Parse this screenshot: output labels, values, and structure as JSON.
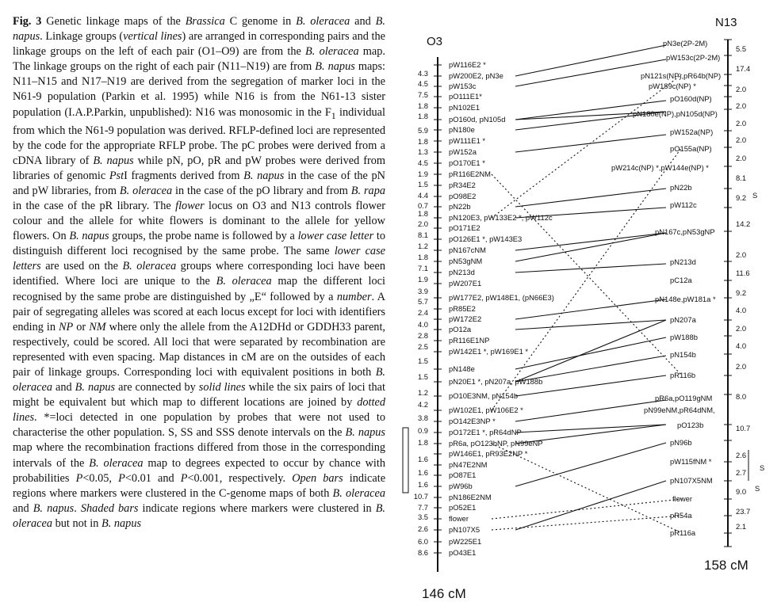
{
  "caption": {
    "fig_label": "Fig. 3",
    "segments": [
      {
        "t": " Genetic linkage maps of the ",
        "s": ""
      },
      {
        "t": "Brassica",
        "s": "it"
      },
      {
        "t": " C genome in ",
        "s": ""
      },
      {
        "t": "B. oleracea",
        "s": "it"
      },
      {
        "t": " and ",
        "s": ""
      },
      {
        "t": "B. napus",
        "s": "it"
      },
      {
        "t": ". Linkage groups (",
        "s": ""
      },
      {
        "t": "vertical lines",
        "s": "it"
      },
      {
        "t": ") are arranged in corresponding pairs and the linkage groups on the left of each pair (O1–O9) are from the ",
        "s": ""
      },
      {
        "t": "B. oleracea",
        "s": "it"
      },
      {
        "t": " map. The linkage groups on the right of each pair (N11–N19) are from ",
        "s": ""
      },
      {
        "t": "B. napus",
        "s": "it"
      },
      {
        "t": " maps: N11–N15 and N17–N19 are derived from the segregation of marker loci in the N61-9 population (Parkin et al. 1995) while N16 is from the N61-13 sister population (I.A.P.Parkin, unpublished): N16 was monosomic in the F",
        "s": ""
      },
      {
        "t": "1",
        "s": "sub"
      },
      {
        "t": " individual from which the N61-9 population was derived. RFLP-defined loci are represented by the code for the appropriate RFLP probe. The pC probes were derived from a cDNA library of ",
        "s": ""
      },
      {
        "t": "B. napus",
        "s": "it"
      },
      {
        "t": " while pN, pO, pR and pW probes were derived from libraries of genomic ",
        "s": ""
      },
      {
        "t": "Pst",
        "s": "it"
      },
      {
        "t": "I fragments derived from ",
        "s": ""
      },
      {
        "t": "B. napus",
        "s": "it"
      },
      {
        "t": " in the case of the pN and pW libraries, from ",
        "s": ""
      },
      {
        "t": "B. oleracea",
        "s": "it"
      },
      {
        "t": " in the case of the pO library and from ",
        "s": ""
      },
      {
        "t": "B. rapa",
        "s": "it"
      },
      {
        "t": " in the case of the pR library. The ",
        "s": ""
      },
      {
        "t": "flower",
        "s": "it"
      },
      {
        "t": " locus on O3 and N13 controls flower colour and the allele for white flowers is dominant to the allele for yellow flowers. On ",
        "s": ""
      },
      {
        "t": "B. napus",
        "s": "it"
      },
      {
        "t": " groups, the probe name is followed by a ",
        "s": ""
      },
      {
        "t": "lower case letter",
        "s": "it"
      },
      {
        "t": " to distinguish different loci recognised by the same probe. The same ",
        "s": ""
      },
      {
        "t": "lower case letters",
        "s": "it"
      },
      {
        "t": " are used on the ",
        "s": ""
      },
      {
        "t": "B. oleracea",
        "s": "it"
      },
      {
        "t": " groups where corresponding loci have been identified. Where loci are unique to the ",
        "s": ""
      },
      {
        "t": "B. oleracea",
        "s": "it"
      },
      {
        "t": " map the different loci recognised by the same probe are distinguished by „E“ followed by a ",
        "s": ""
      },
      {
        "t": "number",
        "s": "it"
      },
      {
        "t": ". A pair of segregating alleles was scored at each locus except for loci with identifiers ending in ",
        "s": ""
      },
      {
        "t": "NP",
        "s": "it"
      },
      {
        "t": " or ",
        "s": ""
      },
      {
        "t": "NM",
        "s": "it"
      },
      {
        "t": " where only the allele from the A12DHd or GDDH33 parent, respectively, could be scored. All loci that were separated by recombination are represented with even spacing. Map distances in cM are on the outsides of each pair of linkage groups. Corresponding loci with equivalent positions in both ",
        "s": ""
      },
      {
        "t": "B. oleracea",
        "s": "it"
      },
      {
        "t": " and ",
        "s": ""
      },
      {
        "t": "B. napus",
        "s": "it"
      },
      {
        "t": " are connected by ",
        "s": ""
      },
      {
        "t": "solid lines",
        "s": "it"
      },
      {
        "t": " while the six pairs of loci that might be equivalent but which map to different locations are joined by ",
        "s": ""
      },
      {
        "t": "dotted lines",
        "s": "it"
      },
      {
        "t": ". *=loci detected in one population by probes that were not used to characterise the other population. S, SS and SSS denote intervals on the ",
        "s": ""
      },
      {
        "t": "B. napus",
        "s": "it"
      },
      {
        "t": " map where the recombination fractions differed from those in the corresponding intervals of the ",
        "s": ""
      },
      {
        "t": "B. oleracea",
        "s": "it"
      },
      {
        "t": " map to degrees expected to occur by chance with probabilities ",
        "s": ""
      },
      {
        "t": "P",
        "s": "it"
      },
      {
        "t": "<0.05, ",
        "s": ""
      },
      {
        "t": "P",
        "s": "it"
      },
      {
        "t": "<0.01 and ",
        "s": ""
      },
      {
        "t": "P",
        "s": "it"
      },
      {
        "t": "<0.001, respectively. ",
        "s": ""
      },
      {
        "t": "Open bars",
        "s": "it"
      },
      {
        "t": " indicate regions where markers were clustered in the C-genome maps of both ",
        "s": ""
      },
      {
        "t": "B. oleracea",
        "s": "it"
      },
      {
        "t": " and ",
        "s": ""
      },
      {
        "t": "B. napus",
        "s": "it"
      },
      {
        "t": ". ",
        "s": ""
      },
      {
        "t": "Shaded bars",
        "s": "it"
      },
      {
        "t": " indicate regions where markers were clustered in ",
        "s": ""
      },
      {
        "t": "B. oleracea",
        "s": "it"
      },
      {
        "t": " but not in ",
        "s": ""
      },
      {
        "t": "B. napus",
        "s": "it"
      }
    ]
  },
  "map_o3": {
    "title": "O3",
    "total": "146 cM",
    "loci": [
      "pW116E2 *",
      "pW200E2, pN3e",
      "pW153c",
      "pO111E1*",
      "pN102E1",
      "pO160d, pN105d",
      "pN180e",
      "pW111E1 *",
      "pW152a",
      "pO170E1 *",
      "pR116E2NM",
      "pR34E2",
      "pO98E2",
      "pN22b",
      "pN120E3, pW133E2 *, pW112c",
      "pO171E2",
      "pO126E1 *, pW143E3",
      "pN167cNM",
      "pN53gNM",
      "pN213d",
      "pW207E1",
      "pW177E2, pW148E1, (pN66E3)",
      "pR85E2",
      "pW172E2",
      "pO12a",
      "pR116E1NP",
      "pW142E1 *, pW169E1 *",
      "pN148e",
      "pN20E1 *, pN207a, pW188b",
      "pO10E3NM, pN154b",
      "pW102E1, pW106E2 *",
      "pO142E3NP *",
      "pO172E1 *, pR64dNP",
      "pR6a, pO123bNP, pN99eNP",
      "pW146E1, pR93E2NP *",
      "pN47E2NM",
      "pO87E1",
      "pW96b",
      "pN186E2NM",
      "pO52E1",
      "flower",
      "pN107X5",
      "pW225E1",
      "pO43E1"
    ],
    "distances": [
      "4.3",
      "4.5",
      "7.5",
      "1.8",
      "1.8",
      "5.9",
      "1.8",
      "1.3",
      "4.5",
      "1.9",
      "1.5",
      "4.4",
      "0.7",
      "1.8",
      "2.0",
      "8.1",
      "1.2",
      "1.8",
      "7.1",
      "1.9",
      "3.9",
      "5.7",
      "2.4",
      "4.0",
      "2.8",
      "2.5",
      "1.5",
      "1.5",
      "1.2",
      "4.2",
      "3.8",
      "0.9",
      "1.8",
      "1.6",
      "1.6",
      "1.6",
      "10.7",
      "7.7",
      "3.5",
      "2.6",
      "6.0",
      "8.6"
    ]
  },
  "map_n13": {
    "title": "N13",
    "total": "158 cM",
    "loci": [
      "pN3e(2P-2M)",
      "pW153c(2P-2M)",
      "pN121s(NP),pR64b(NP)",
      "pW189c(NP) *",
      "pO160d(NP)",
      "pN180e(NP),pN105d(NP)",
      "pW152a(NP)",
      "pO155a(NP)",
      "pW214c(NP) *,pW144e(NP) *",
      "pN22b",
      "pW112c",
      "pN167c,pN53gNP",
      "pN213d",
      "pC12a",
      "pN148e,pW181a *",
      "pN207a",
      "pW188b",
      "pN154b",
      "pR116b",
      "pR6a,pO119gNM",
      "pN99eNM,pR64dNM,",
      "pO123b",
      "pN96b",
      "pW115fNM *",
      "pN107X5NM",
      "flower",
      "pR54a",
      "pR116a"
    ],
    "distances": [
      "5.5",
      "17.4",
      "2.0",
      "2.0",
      "2.0",
      "2.0",
      "2.0",
      "8.1",
      "9.2",
      "14.2",
      "2.0",
      "11.6",
      "9.2",
      "4.0",
      "2.0",
      "4.0",
      "2.0",
      "8.0",
      "10.7",
      "2.6",
      "2.7",
      "9.0",
      "23.7",
      "2.1"
    ],
    "flags": [
      "S",
      "S",
      "S"
    ]
  }
}
